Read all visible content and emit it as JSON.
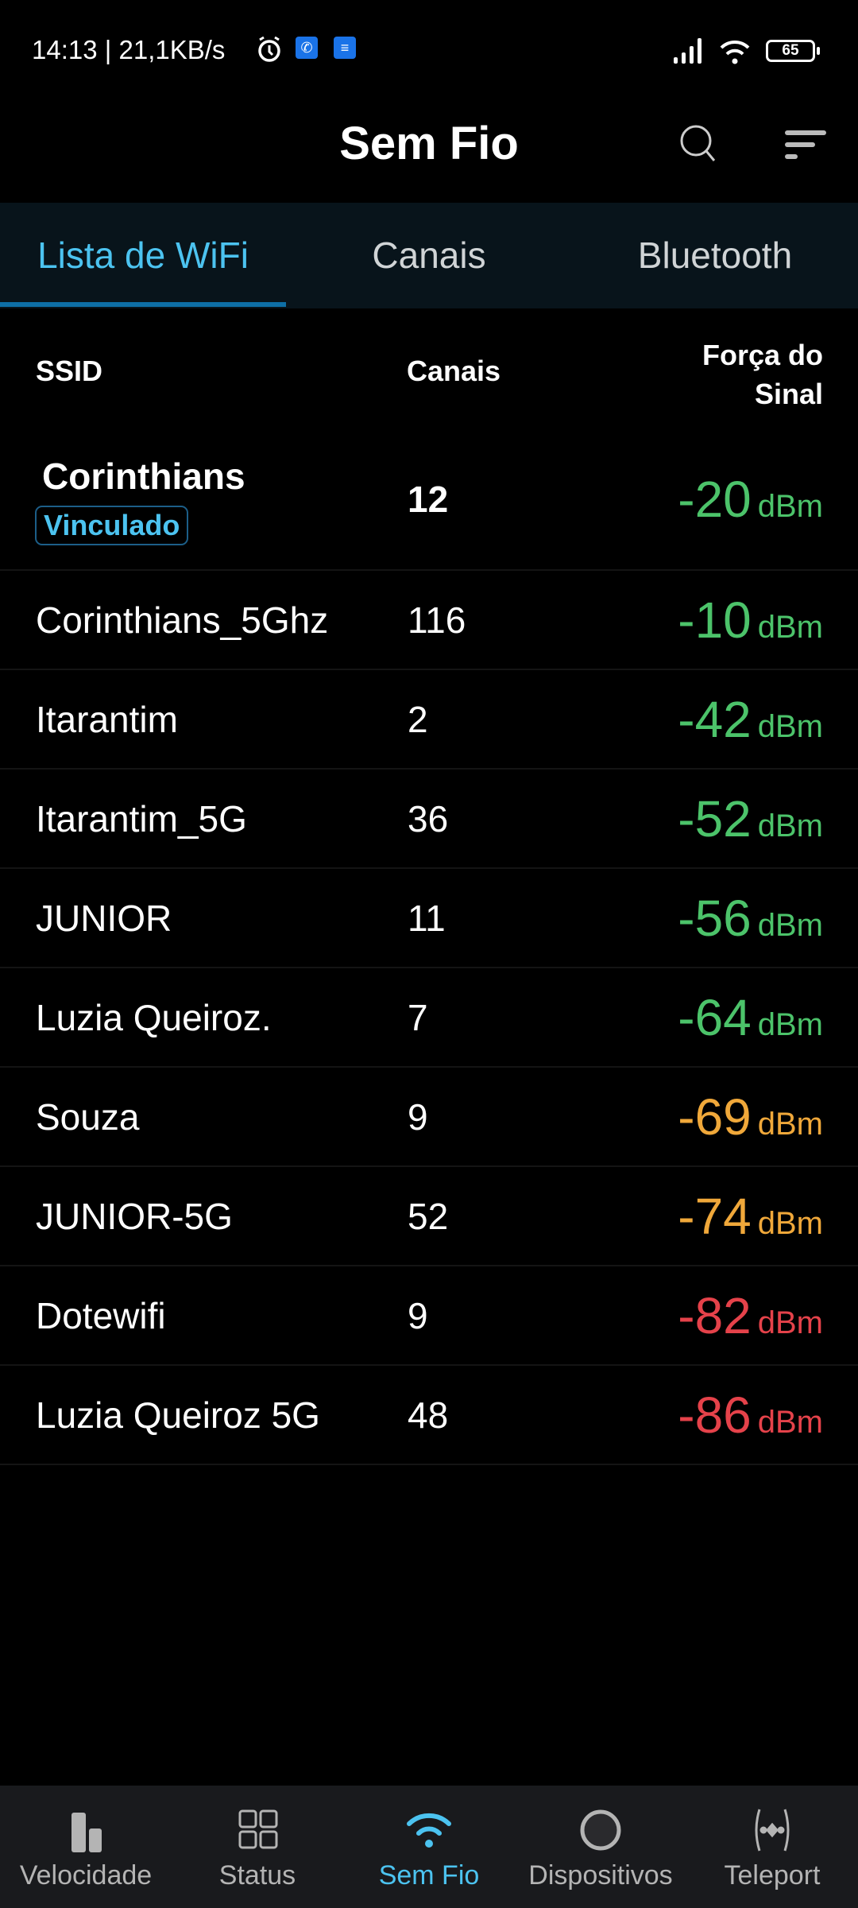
{
  "status_bar": {
    "time_speed": "14:13 | 21,1KB/s",
    "battery": "65",
    "icons": [
      "alarm-icon",
      "phone-icon",
      "messages-icon",
      "signal-icon",
      "wifi-icon",
      "battery-icon"
    ]
  },
  "app_bar": {
    "title": "Sem Fio",
    "icons": [
      "search-icon",
      "filter-icon"
    ]
  },
  "tabs": [
    {
      "label": "Lista de WiFi",
      "active": true
    },
    {
      "label": "Canais"
    },
    {
      "label": "Bluetooth"
    }
  ],
  "table": {
    "headers": {
      "ssid": "SSID",
      "channels": "Canais",
      "signal": "Força do Sinal"
    },
    "unit": "dBm",
    "colors": {
      "good": "#4cc36a",
      "medium": "#f0a83a",
      "weak": "#e5424a"
    },
    "rows": [
      {
        "ssid": "Corinthians",
        "badge": "Vinculado",
        "channel": "12",
        "signal": "-20",
        "level": "good"
      },
      {
        "ssid": "Corinthians_5Ghz",
        "channel": "116",
        "signal": "-10",
        "level": "good"
      },
      {
        "ssid": "Itarantim",
        "channel": "2",
        "signal": "-42",
        "level": "good"
      },
      {
        "ssid": "Itarantim_5G",
        "channel": "36",
        "signal": "-52",
        "level": "good"
      },
      {
        "ssid": "JUNIOR",
        "channel": "11",
        "signal": "-56",
        "level": "good"
      },
      {
        "ssid": "Luzia Queiroz.",
        "channel": "7",
        "signal": "-64",
        "level": "good"
      },
      {
        "ssid": "Souza",
        "channel": "9",
        "signal": "-69",
        "level": "medium"
      },
      {
        "ssid": "JUNIOR-5G",
        "channel": "52",
        "signal": "-74",
        "level": "medium"
      },
      {
        "ssid": "Dotewifi",
        "channel": "9",
        "signal": "-82",
        "level": "weak"
      },
      {
        "ssid": "Luzia Queiroz 5G",
        "channel": "48",
        "signal": "-86",
        "level": "weak"
      }
    ]
  },
  "bottom_nav": [
    {
      "label": "Velocidade",
      "icon": "speed-bars-icon"
    },
    {
      "label": "Status",
      "icon": "grid-icon"
    },
    {
      "label": "Sem Fio",
      "icon": "wifi-icon",
      "active": true
    },
    {
      "label": "Dispositivos",
      "icon": "devices-circle-icon"
    },
    {
      "label": "Teleport",
      "icon": "teleport-icon"
    }
  ]
}
